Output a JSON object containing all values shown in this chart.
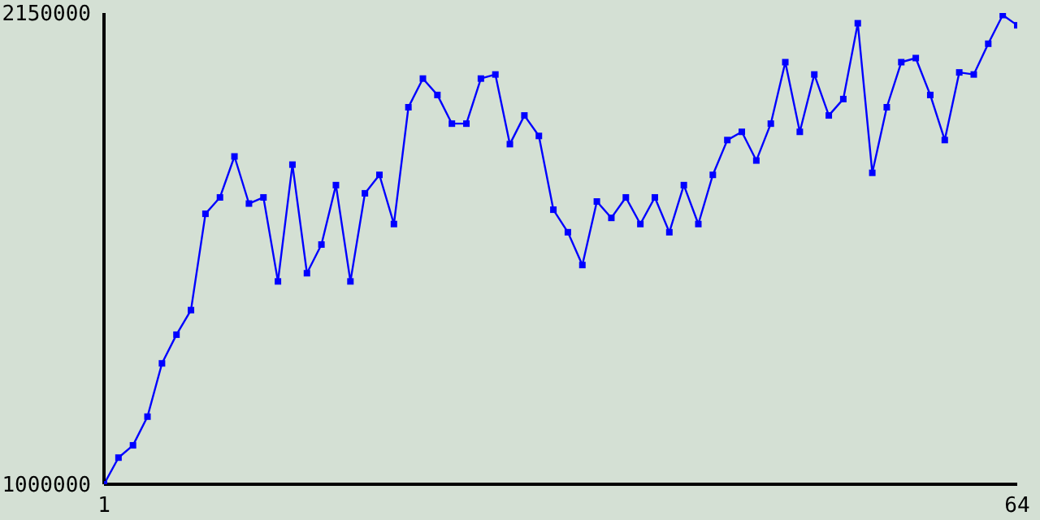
{
  "chart_data": {
    "type": "line",
    "x": [
      1,
      2,
      3,
      4,
      5,
      6,
      7,
      8,
      9,
      10,
      11,
      12,
      13,
      14,
      15,
      16,
      17,
      18,
      19,
      20,
      21,
      22,
      23,
      24,
      25,
      26,
      27,
      28,
      29,
      30,
      31,
      32,
      33,
      34,
      35,
      36,
      37,
      38,
      39,
      40,
      41,
      42,
      43,
      44,
      45,
      46,
      47,
      48,
      49,
      50,
      51,
      52,
      53,
      54,
      55,
      56,
      57,
      58,
      59,
      60,
      61,
      62,
      63,
      64
    ],
    "series": [
      {
        "color": "#0000ff",
        "values": [
          1000000,
          1065000,
          1095000,
          1165000,
          1295000,
          1365000,
          1425000,
          1660000,
          1700000,
          1800000,
          1685000,
          1700000,
          1495000,
          1780000,
          1515000,
          1585000,
          1730000,
          1495000,
          1710000,
          1755000,
          1635000,
          1920000,
          1990000,
          1950000,
          1880000,
          1880000,
          1990000,
          2000000,
          1830000,
          1900000,
          1850000,
          1670000,
          1615000,
          1535000,
          1690000,
          1650000,
          1700000,
          1635000,
          1700000,
          1615000,
          1730000,
          1635000,
          1755000,
          1840000,
          1860000,
          1790000,
          1880000,
          2030000,
          1860000,
          2000000,
          1900000,
          1940000,
          2125000,
          1760000,
          1920000,
          2030000,
          2040000,
          1950000,
          1840000,
          2005000,
          2000000,
          2075000,
          2145000,
          2120000
        ]
      }
    ],
    "xlim": [
      1,
      64
    ],
    "xticks": [
      1,
      64
    ],
    "ylim": [
      1000000,
      2150000
    ],
    "yticks": [
      1000000,
      2150000
    ],
    "grid": false,
    "legend": false,
    "marker": "square",
    "line_style": "solid"
  }
}
